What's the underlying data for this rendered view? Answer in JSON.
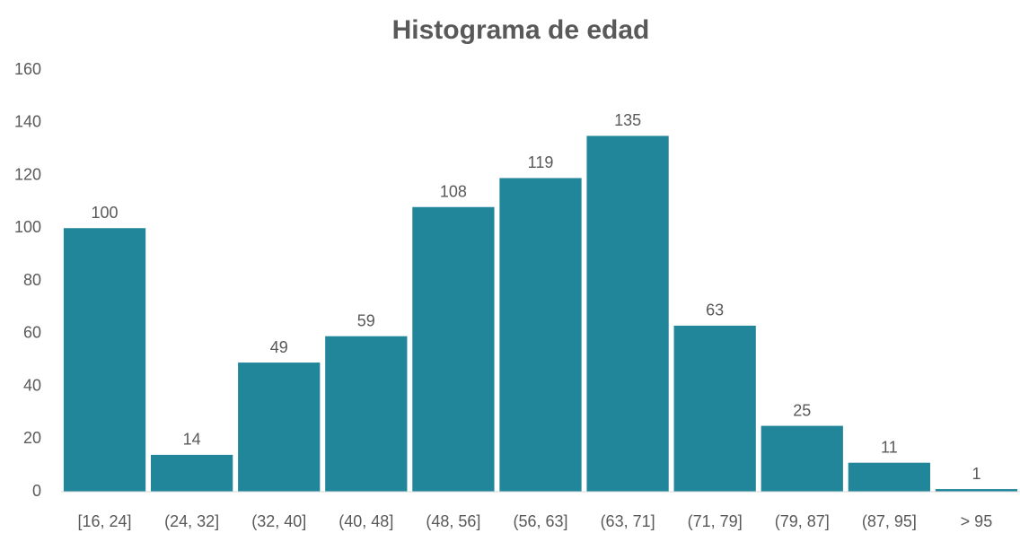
{
  "chart_data": {
    "type": "bar",
    "title": "Histograma de edad",
    "categories": [
      "[16, 24]",
      "(24, 32]",
      "(32, 40]",
      "(40, 48]",
      "(48, 56]",
      "(56, 63]",
      "(63, 71]",
      "(71, 79]",
      "(79, 87]",
      "(87, 95]",
      "> 95"
    ],
    "values": [
      100,
      14,
      49,
      59,
      108,
      119,
      135,
      63,
      25,
      11,
      1
    ],
    "color": "#21869a",
    "ylim": [
      0,
      160
    ],
    "yticks": [
      0,
      20,
      40,
      60,
      80,
      100,
      120,
      140,
      160
    ],
    "grid": false
  }
}
